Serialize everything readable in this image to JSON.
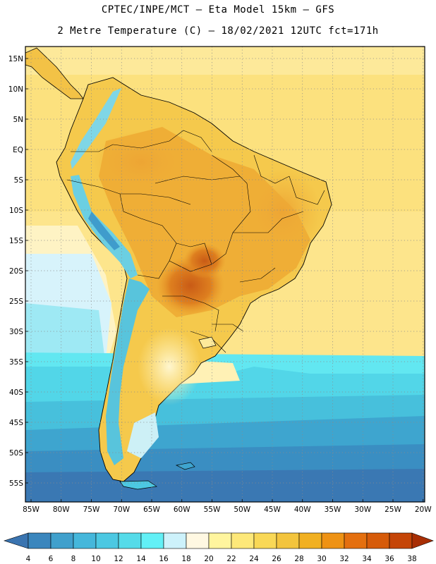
{
  "header": {
    "line1": "CPTEC/INPE/MCT –  Eta Model 15km – GFS",
    "line2": "2 Metre Temperature (C) – 18/02/2021 12UTC fct=171h"
  },
  "map": {
    "lat_labels": [
      "15N",
      "10N",
      "5N",
      "EQ",
      "5S",
      "10S",
      "15S",
      "20S",
      "25S",
      "30S",
      "35S",
      "40S",
      "45S",
      "50S",
      "55S"
    ],
    "lon_labels": [
      "85W",
      "80W",
      "75W",
      "70W",
      "65W",
      "60W",
      "55W",
      "50W",
      "45W",
      "40W",
      "35W",
      "30W",
      "25W",
      "20W"
    ],
    "extent": {
      "lon": [
        -86,
        -20
      ],
      "lat": [
        -58,
        16
      ]
    },
    "grid": "dotted"
  },
  "legend": {
    "ticks": [
      "4",
      "6",
      "8",
      "10",
      "12",
      "14",
      "16",
      "18",
      "20",
      "22",
      "24",
      "26",
      "28",
      "30",
      "32",
      "34",
      "36",
      "38"
    ],
    "colors": [
      "#3a74b0",
      "#3a86bd",
      "#40a0cc",
      "#45b7db",
      "#4cc8e2",
      "#55dbe9",
      "#62f0f6",
      "#cdf2fb",
      "#fff8e2",
      "#fff59e",
      "#fde879",
      "#f9d856",
      "#f3c43d",
      "#f1b021",
      "#ee9214",
      "#e46f0f",
      "#d65b0a",
      "#c54507",
      "#a82e04"
    ]
  }
}
